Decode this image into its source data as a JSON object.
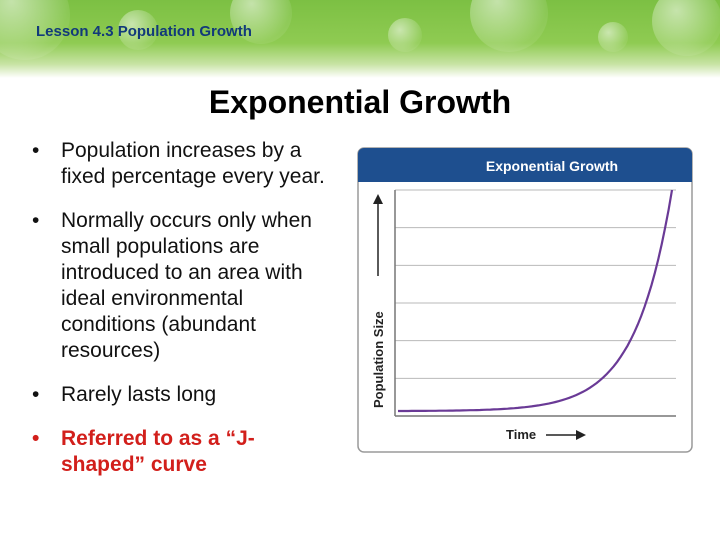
{
  "slide": {
    "lesson_header": "Lesson 4.3 Population Growth",
    "title": "Exponential Growth",
    "bullet_symbol": "•",
    "bullets": [
      "Population increases by a fixed percentage every year.",
      "Normally occurs only when small populations are introduced to an area with ideal environmental conditions (abundant resources)",
      "Rarely lasts long",
      "Referred to as a “J-shaped” curve"
    ],
    "highlight_color": "#d21f1b"
  },
  "chart_data": {
    "type": "line",
    "title": "Exponential Growth",
    "xlabel": "Time",
    "ylabel": "Population Size",
    "grid": true,
    "curve": "J-shaped exponential",
    "colors": {
      "header": "#1e4f8f",
      "line": "#6a3a96",
      "grid": "#b9b9b9"
    }
  }
}
